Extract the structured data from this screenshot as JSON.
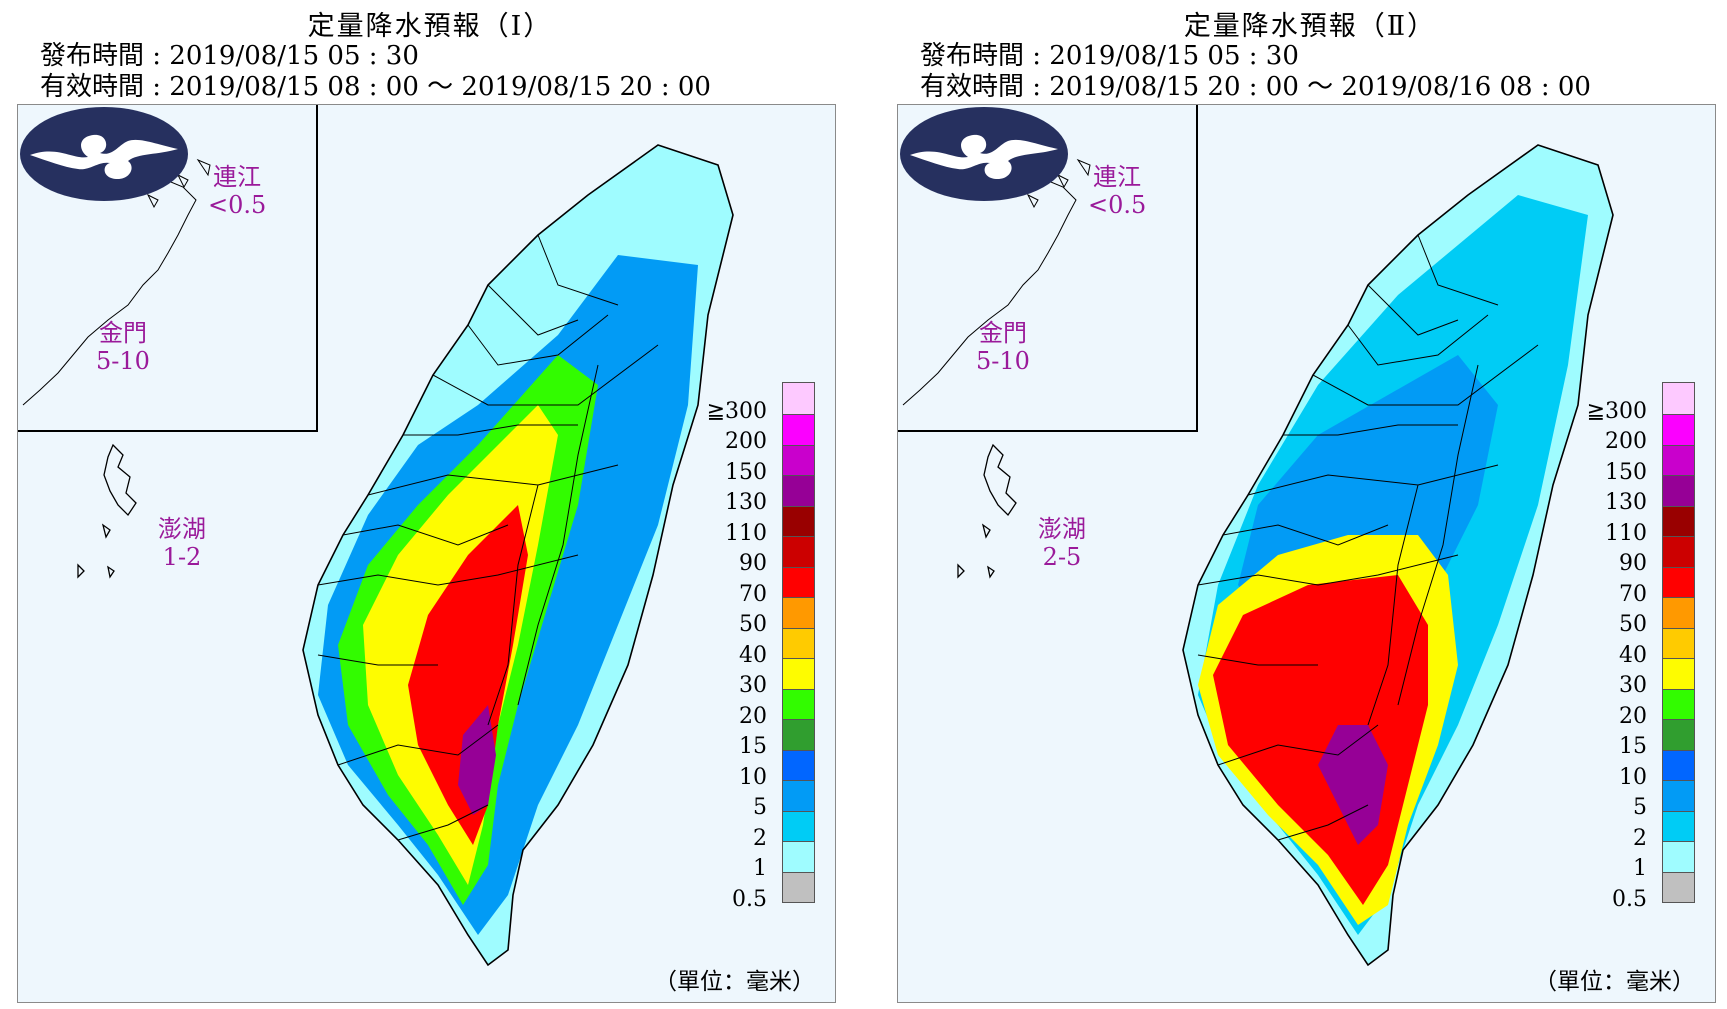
{
  "colors": {
    "legend": [
      "#c0c0c0",
      "#9ffcff",
      "#00ccf5",
      "#029bf5",
      "#0166ff",
      "#309e2f",
      "#32fc00",
      "#fefc00",
      "#ffcb00",
      "#ff9900",
      "#ff0000",
      "#cc0000",
      "#990000",
      "#960096",
      "#c900cc",
      "#fb00ff",
      "#fdc9ff"
    ],
    "map_fill": [
      "#9ffcff",
      "#00ccf5",
      "#029bf5",
      "#0166ff",
      "#309e2f",
      "#32fc00",
      "#fefc00",
      "#ffcb00",
      "#ff9900",
      "#ff0000",
      "#cc0000",
      "#960096",
      "#c900cc"
    ],
    "island_label": "#9a1a9a",
    "logo": "#26305f"
  },
  "legend": {
    "labels": [
      "0.5",
      "1",
      "2",
      "5",
      "10",
      "15",
      "20",
      "30",
      "40",
      "50",
      "70",
      "90",
      "110",
      "130",
      "150",
      "200",
      "≧300"
    ],
    "unit": "（單位：毫米）"
  },
  "panels": [
    {
      "title": "定量降水預報（Ⅰ）",
      "issue_time": "發布時間 : 2019/08/15 05 : 30",
      "valid_time": "有效時間 : 2019/08/15 08 : 00 ～ 2019/08/15 20 : 00",
      "islands": {
        "lienchiang_name": "連江",
        "lienchiang_value": "<0.5",
        "kinmen_name": "金門",
        "kinmen_value": "5-10",
        "penghu_name": "澎湖",
        "penghu_value": "1-2"
      }
    },
    {
      "title": "定量降水預報（Ⅱ）",
      "issue_time": "發布時間 : 2019/08/15 05 : 30",
      "valid_time": "有效時間 : 2019/08/15 20 : 00 ～ 2019/08/16 08 : 00",
      "islands": {
        "lienchiang_name": "連江",
        "lienchiang_value": "<0.5",
        "kinmen_name": "金門",
        "kinmen_value": "5-10",
        "penghu_name": "澎湖",
        "penghu_value": "2-5"
      }
    }
  ]
}
